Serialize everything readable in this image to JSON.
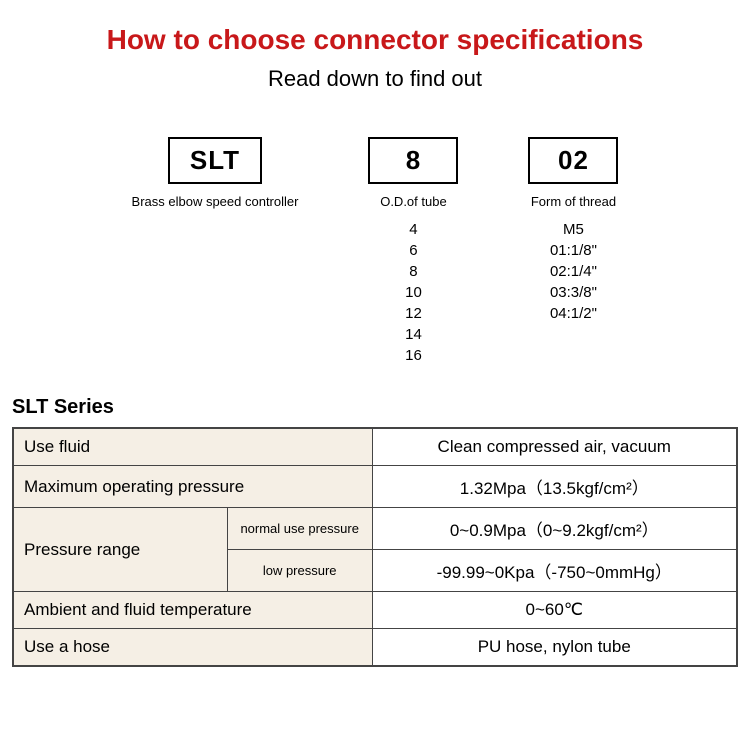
{
  "header": {
    "title": "How to choose connector specifications",
    "title_color": "#c8181a",
    "subtitle": "Read down to find out"
  },
  "spec_columns": [
    {
      "box_value": "SLT",
      "label": "Brass elbow speed controller",
      "values": []
    },
    {
      "box_value": "8",
      "label": "O.D.of tube",
      "values": [
        "4",
        "6",
        "8",
        "10",
        "12",
        "14",
        "16"
      ]
    },
    {
      "box_value": "02",
      "label": "Form of thread",
      "values": [
        "M5",
        "01:1/8\"",
        "02:1/4\"",
        "03:3/8\"",
        "04:1/2\""
      ]
    }
  ],
  "series_title": "SLT Series",
  "table_bg_color": "#f5efe5",
  "table_border_color": "#444444",
  "table_rows": {
    "use_fluid_label": "Use fluid",
    "use_fluid_value": "Clean compressed air, vacuum",
    "max_pressure_label": "Maximum operating pressure",
    "max_pressure_value": "1.32Mpa（13.5kgf/cm²）",
    "pressure_range_label": "Pressure range",
    "normal_use_label": "normal use pressure",
    "normal_use_value": "0~0.9Mpa（0~9.2kgf/cm²）",
    "low_pressure_label": "low pressure",
    "low_pressure_value": "-99.99~0Kpa（-750~0mmHg）",
    "ambient_temp_label": "Ambient and fluid temperature",
    "ambient_temp_value": "0~60℃",
    "use_hose_label": "Use a hose",
    "use_hose_value": "PU hose, nylon tube"
  }
}
